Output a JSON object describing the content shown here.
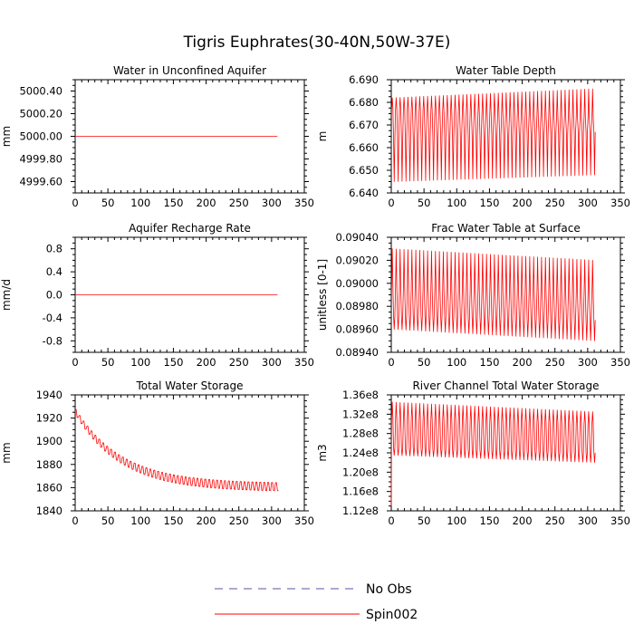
{
  "title": "Tigris Euphrates(30-40N,50W-37E)",
  "legend": [
    {
      "label": "No Obs",
      "color": "#5555aa",
      "style": "dashed"
    },
    {
      "label": "Spin002",
      "color": "#ff0000",
      "style": "solid"
    }
  ],
  "chart_data": [
    {
      "type": "line",
      "title": "Water in Unconfined Aquifer",
      "ylabel": "mm",
      "xlim": [
        0,
        350
      ],
      "ylim": [
        4999.5,
        5000.5
      ],
      "xticks": [
        0,
        50,
        100,
        150,
        200,
        250,
        300,
        350
      ],
      "yticks": [
        4999.6,
        4999.8,
        5000.0,
        5000.2,
        5000.4
      ],
      "ytick_labels": [
        "4999.60",
        "4999.80",
        "5000.00",
        "5000.20",
        "5000.40"
      ],
      "series": [
        {
          "name": "Spin002",
          "kind": "flat",
          "x": [
            0,
            309
          ],
          "y": [
            5000.0,
            5000.0
          ]
        }
      ]
    },
    {
      "type": "line",
      "title": "Water Table Depth",
      "ylabel": "m",
      "xlim": [
        0,
        350
      ],
      "ylim": [
        6.64,
        6.69
      ],
      "xticks": [
        0,
        50,
        100,
        150,
        200,
        250,
        300,
        350
      ],
      "yticks": [
        6.64,
        6.65,
        6.66,
        6.67,
        6.68,
        6.69
      ],
      "ytick_labels": [
        "6.640",
        "6.650",
        "6.660",
        "6.670",
        "6.680",
        "6.690"
      ],
      "series": [
        {
          "name": "Spin002",
          "kind": "oscillating",
          "period": 6,
          "xend": 309,
          "max_start": 6.682,
          "max_end": 6.686,
          "min_start": 6.645,
          "min_end": 6.648,
          "upper_band": [
            6.677,
            6.673
          ],
          "lower_band": [
            6.664,
            6.667
          ]
        }
      ]
    },
    {
      "type": "line",
      "title": "Aquifer Recharge Rate",
      "ylabel": "mm/d",
      "xlim": [
        0,
        350
      ],
      "ylim": [
        -1.0,
        1.0
      ],
      "xticks": [
        0,
        50,
        100,
        150,
        200,
        250,
        300,
        350
      ],
      "yticks": [
        -0.8,
        -0.4,
        0.0,
        0.4,
        0.8
      ],
      "ytick_labels": [
        "-0.8",
        "-0.4",
        "0.0",
        "0.4",
        "0.8"
      ],
      "series": [
        {
          "name": "Spin002",
          "kind": "flat",
          "x": [
            0,
            309
          ],
          "y": [
            0.0,
            0.0
          ]
        }
      ]
    },
    {
      "type": "line",
      "title": "Frac Water Table at Surface",
      "ylabel": "unitless [0-1]",
      "xlim": [
        0,
        350
      ],
      "ylim": [
        0.0894,
        0.0904
      ],
      "xticks": [
        0,
        50,
        100,
        150,
        200,
        250,
        300,
        350
      ],
      "yticks": [
        0.0894,
        0.0896,
        0.0898,
        0.09,
        0.0902,
        0.0904
      ],
      "ytick_labels": [
        "0.08940",
        "0.08960",
        "0.08980",
        "0.09000",
        "0.09020",
        "0.09040"
      ],
      "series": [
        {
          "name": "Spin002",
          "kind": "oscillating",
          "period": 6,
          "xend": 309,
          "max_start": 0.0903,
          "max_end": 0.0902,
          "min_start": 0.0896,
          "min_end": 0.0895,
          "upper_band": [
            0.08996,
            0.0899
          ],
          "lower_band": [
            0.08972,
            0.08968
          ]
        }
      ]
    },
    {
      "type": "line",
      "title": "Total Water Storage",
      "ylabel": "mm",
      "xlim": [
        0,
        350
      ],
      "ylim": [
        1840,
        1940
      ],
      "xticks": [
        0,
        50,
        100,
        150,
        200,
        250,
        300,
        350
      ],
      "yticks": [
        1840,
        1860,
        1880,
        1900,
        1920,
        1940
      ],
      "ytick_labels": [
        "1840",
        "1860",
        "1880",
        "1900",
        "1920",
        "1940"
      ],
      "series": [
        {
          "name": "Spin002",
          "kind": "decay",
          "period": 6,
          "xend": 309,
          "start": 1924,
          "floor": 1860,
          "tau": 70,
          "amplitude": 7
        }
      ]
    },
    {
      "type": "line",
      "title": "River Channel Total Water Storage",
      "ylabel": "m3",
      "xlim": [
        0,
        350
      ],
      "ylim": [
        112000000,
        136000000
      ],
      "xticks": [
        0,
        50,
        100,
        150,
        200,
        250,
        300,
        350
      ],
      "yticks": [
        112000000,
        116000000,
        120000000,
        124000000,
        128000000,
        132000000,
        136000000
      ],
      "ytick_labels": [
        "1.12e8",
        "1.16e8",
        "1.20e8",
        "1.24e8",
        "1.28e8",
        "1.32e8",
        "1.36e8"
      ],
      "series": [
        {
          "name": "Spin002",
          "kind": "oscillating",
          "period": 6,
          "xend": 309,
          "max_start": 134500000,
          "max_end": 132500000,
          "min_start": 123500000,
          "min_end": 122000000,
          "upper_band": [
            131000000,
            130000000
          ],
          "lower_band": [
            125000000,
            124000000
          ],
          "spike_start": 113000000
        }
      ]
    }
  ]
}
